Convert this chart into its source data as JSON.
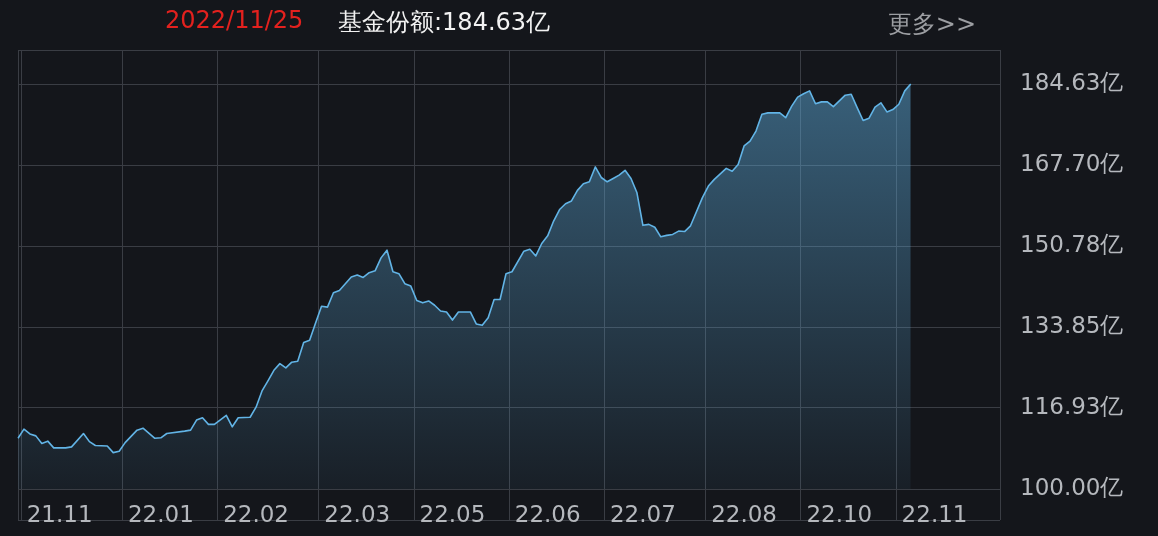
{
  "chart_data": {
    "type": "area",
    "title": "2022/11/25",
    "subtitle": "基金份额:184.63亿",
    "annotations": [
      "更多>>"
    ],
    "categories": [
      null,
      null,
      null,
      null,
      null,
      null,
      null,
      "21.11",
      null,
      null,
      null,
      null,
      null,
      null,
      null,
      null,
      null,
      null,
      null,
      null,
      null,
      null,
      null,
      null,
      "22.01",
      null,
      null,
      null,
      null,
      null,
      null,
      null,
      null,
      null,
      null,
      null,
      null,
      null,
      null,
      null,
      "22.02",
      null,
      null,
      null,
      null,
      null,
      null,
      null,
      null,
      null,
      null,
      null,
      null,
      null,
      null,
      null,
      null,
      "22.03",
      null,
      null,
      null,
      null,
      null,
      null,
      null,
      null,
      null,
      null,
      null,
      null,
      null,
      null,
      null,
      "22.05",
      null,
      null,
      null,
      null,
      null,
      null,
      null,
      null,
      null,
      null,
      null,
      null,
      null,
      null,
      null,
      "22.06",
      null,
      null,
      null,
      null,
      null,
      null,
      null,
      null,
      null,
      null,
      null,
      null,
      null,
      null,
      null,
      "22.07",
      null,
      null,
      null,
      null,
      null,
      null,
      null,
      null,
      null,
      null,
      null,
      null,
      null,
      null,
      null,
      null,
      "22.08",
      null,
      null,
      null,
      null,
      null,
      null,
      null,
      null,
      null,
      null,
      null,
      null,
      null,
      null,
      null,
      "22.10",
      null,
      null,
      null,
      null,
      null,
      null,
      null,
      null,
      null,
      null,
      null,
      null,
      null,
      null,
      null,
      "22.11",
      null,
      null,
      null,
      null,
      null,
      null,
      null,
      null,
      null,
      null,
      null
    ],
    "series": [
      {
        "color": "#62b4e6",
        "values": [
          110.6,
          112.5,
          111.5,
          111.1,
          109.5,
          110.0,
          108.6,
          null,
          108.6,
          108.8,
          null,
          111.6,
          109.9,
          109.1,
          null,
          109.0,
          107.6,
          107.9,
          109.7,
          null,
          112.3,
          112.7,
          null,
          110.6,
          110.7,
          111.6,
          null,
          null,
          112.1,
          112.3,
          114.4,
          114.9,
          113.5,
          113.5,
          null,
          115.4,
          113.0,
          114.9,
          null,
          115.0,
          117.1,
          120.5,
          122.6,
          124.8,
          126.2,
          125.3,
          126.5,
          126.7,
          130.6,
          131.1,
          134.7,
          138.2,
          138.0,
          141.0,
          141.5,
          null,
          144.3,
          144.7,
          144.2,
          145.2,
          145.6,
          148.3,
          149.9,
          145.4,
          145.0,
          142.9,
          142.4,
          139.4,
          138.9,
          139.3,
          138.4,
          137.2,
          137.0,
          135.3,
          137.0,
          null,
          137.0,
          134.5,
          134.2,
          135.8,
          139.6,
          139.6,
          145.0,
          145.4,
          null,
          149.7,
          150.1,
          148.7,
          151.3,
          152.9,
          156.0,
          158.4,
          159.6,
          160.2,
          162.4,
          163.8,
          164.2,
          167.3,
          165.1,
          164.2,
          164.9,
          165.6,
          166.6,
          164.9,
          161.9,
          155.1,
          155.3,
          154.7,
          152.7,
          153.0,
          153.2,
          153.9,
          153.8,
          155.0,
          null,
          160.9,
          163.3,
          164.7,
          null,
          167.0,
          166.4,
          167.8,
          171.7,
          172.7,
          174.8,
          178.3,
          178.6,
          null,
          178.6,
          177.6,
          180.0,
          181.9,
          182.6,
          183.2,
          180.5,
          180.9,
          180.9,
          179.9,
          null,
          182.3,
          182.5,
          179.7,
          177.0,
          177.5,
          179.8,
          180.7,
          178.8,
          179.3,
          180.4,
          183.2,
          184.63,
          null,
          null,
          null,
          null,
          null,
          null,
          null,
          null,
          null,
          null,
          null,
          null,
          null,
          null,
          null
        ]
      }
    ],
    "ylim": [
      100,
      191.74
    ],
    "yticks": [
      {
        "value": 100,
        "label": "100.00亿"
      },
      {
        "value": 116.93,
        "label": "116.93亿"
      },
      {
        "value": 133.85,
        "label": "133.85亿"
      },
      {
        "value": 150.78,
        "label": "150.78亿"
      },
      {
        "value": 167.7,
        "label": "167.70亿"
      },
      {
        "value": 184.63,
        "label": "184.63亿"
      }
    ],
    "grid": true,
    "legend": false,
    "marker": "none"
  }
}
